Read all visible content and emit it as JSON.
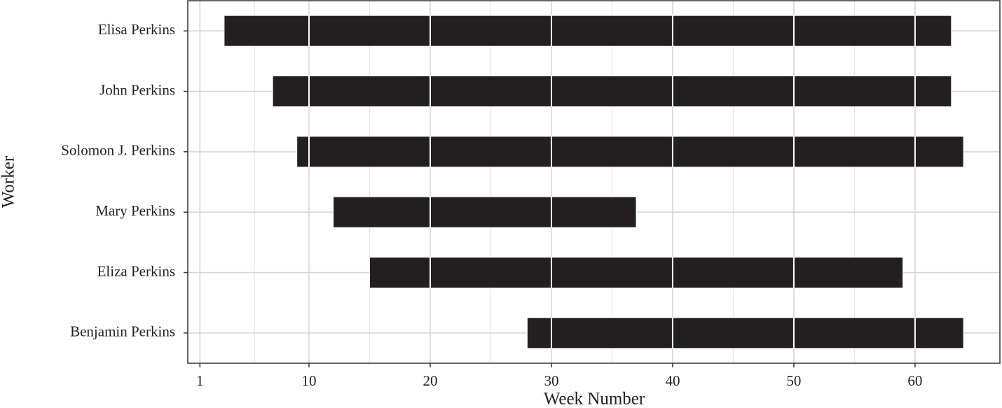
{
  "chart_data": {
    "type": "range-bar",
    "x_label": "Week Number",
    "y_label": "Worker",
    "categories": [
      "Elisa Perkins",
      "John Perkins",
      "Solomon J. Perkins",
      "Mary Perkins",
      "Eliza Perkins",
      "Benjamin Perkins"
    ],
    "starts": [
      3,
      7,
      9,
      12,
      15,
      28
    ],
    "ends": [
      63,
      63,
      64,
      37,
      59,
      64
    ],
    "color": "#231f20",
    "xlim": [
      0,
      67
    ],
    "xticks": [
      1,
      10,
      20,
      30,
      40,
      50,
      60
    ],
    "minor_xticks": [
      5.5,
      15,
      25,
      35,
      45,
      55
    ],
    "grid": true
  }
}
